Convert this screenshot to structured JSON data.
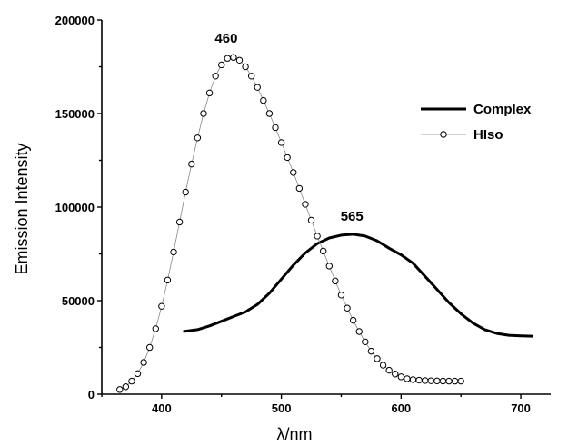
{
  "chart_data": {
    "type": "line",
    "xlabel": "λ/nm",
    "ylabel": "Emission Intensity",
    "xlim": [
      350,
      725
    ],
    "ylim": [
      0,
      200000
    ],
    "x_ticks": [
      400,
      500,
      600,
      700
    ],
    "y_ticks": [
      0,
      50000,
      100000,
      150000,
      200000
    ],
    "grid": false,
    "legend_position": "top-right",
    "annotations": [
      {
        "text": "460",
        "x": 460,
        "y": 180000
      },
      {
        "text": "565",
        "x": 565,
        "y": 85000
      }
    ],
    "series": [
      {
        "name": "Complex",
        "style": "solid-thick",
        "color": "#000000",
        "x": [
          418,
          430,
          440,
          450,
          460,
          470,
          480,
          490,
          500,
          510,
          520,
          530,
          540,
          550,
          560,
          570,
          580,
          590,
          600,
          610,
          620,
          630,
          640,
          650,
          660,
          670,
          680,
          690,
          700,
          710
        ],
        "y": [
          33500,
          34500,
          36500,
          39000,
          41500,
          44000,
          48000,
          54000,
          61500,
          69000,
          75500,
          80500,
          83500,
          85000,
          85500,
          84500,
          82000,
          78000,
          74500,
          70000,
          63000,
          56000,
          49000,
          43000,
          38000,
          34500,
          32500,
          31500,
          31200,
          31000
        ]
      },
      {
        "name": "HIso",
        "style": "line-circle-markers",
        "color": "#000000",
        "x": [
          365,
          370,
          375,
          380,
          385,
          390,
          395,
          400,
          405,
          410,
          415,
          420,
          425,
          430,
          435,
          440,
          445,
          450,
          455,
          460,
          465,
          470,
          475,
          480,
          485,
          490,
          495,
          500,
          505,
          510,
          515,
          520,
          525,
          530,
          535,
          540,
          545,
          550,
          555,
          560,
          565,
          570,
          575,
          580,
          585,
          590,
          595,
          600,
          605,
          610,
          615,
          620,
          625,
          630,
          635,
          640,
          645,
          650
        ],
        "y": [
          2500,
          4000,
          7000,
          11000,
          17000,
          25000,
          35000,
          47000,
          61000,
          76000,
          92000,
          108000,
          123000,
          137000,
          150000,
          161000,
          170000,
          176000,
          179500,
          180000,
          178500,
          175000,
          170000,
          164000,
          157000,
          150000,
          142500,
          134500,
          126500,
          118500,
          110000,
          101500,
          93000,
          84500,
          76500,
          68500,
          60500,
          53000,
          46000,
          39500,
          33500,
          28000,
          23000,
          19000,
          15500,
          12800,
          10800,
          9300,
          8300,
          7800,
          7500,
          7300,
          7200,
          7100,
          7050,
          7000,
          7000,
          7000
        ]
      }
    ]
  }
}
